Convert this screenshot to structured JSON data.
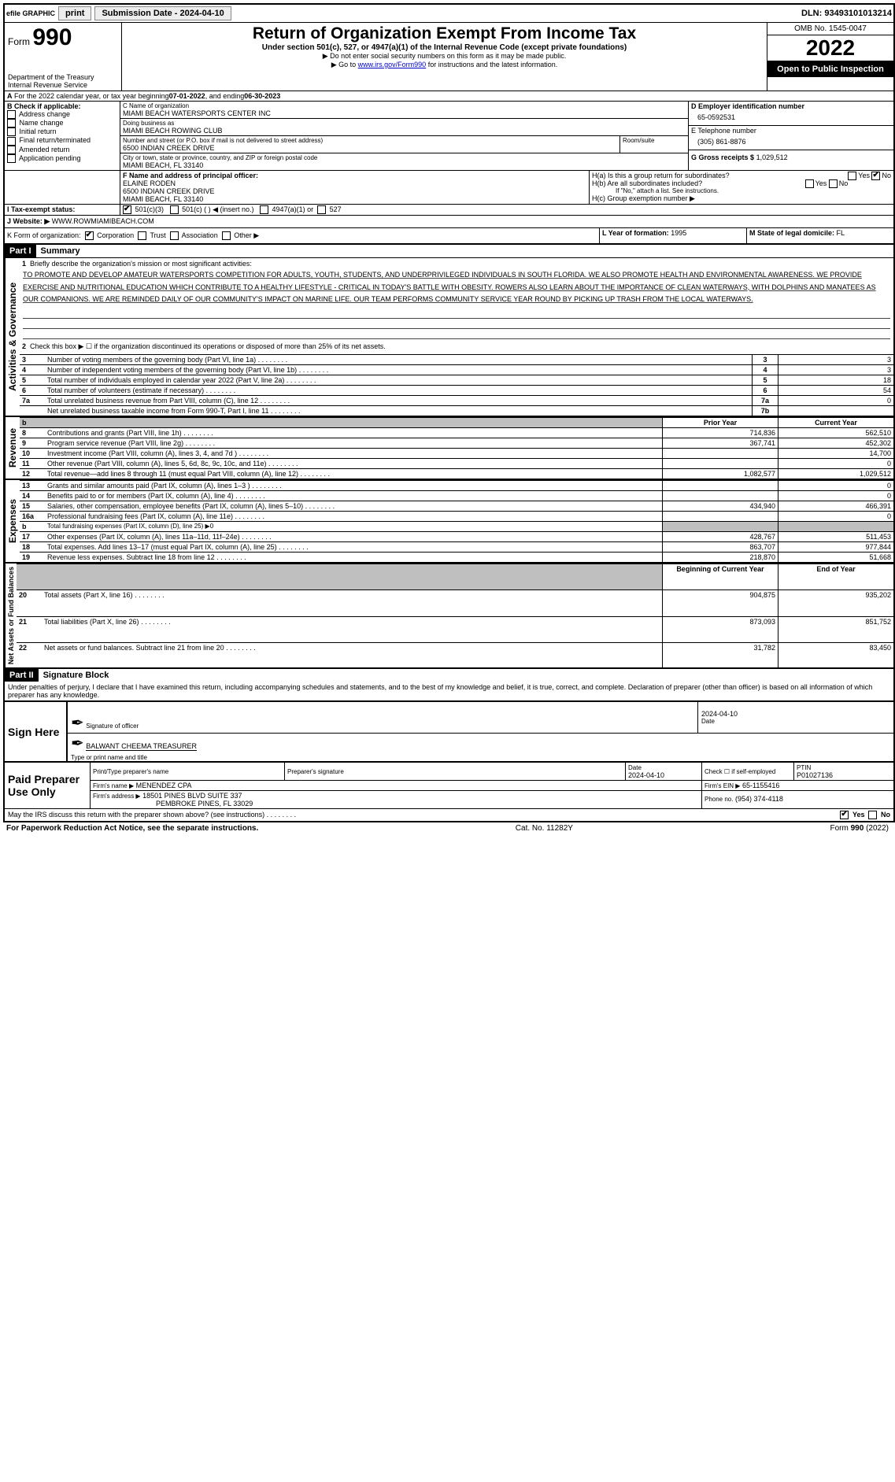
{
  "topbar": {
    "efile": "efile GRAPHIC",
    "print": "print",
    "submission_label": "Submission Date - 2024-04-10",
    "dln": "DLN: 93493101013214"
  },
  "header": {
    "form_label": "Form",
    "form_number": "990",
    "title": "Return of Organization Exempt From Income Tax",
    "subtitle": "Under section 501(c), 527, or 4947(a)(1) of the Internal Revenue Code (except private foundations)",
    "no_ssn": "▶ Do not enter social security numbers on this form as it may be made public.",
    "goto_pre": "▶ Go to ",
    "goto_link": "www.irs.gov/Form990",
    "goto_post": " for instructions and the latest information.",
    "dept": "Department of the Treasury",
    "irs": "Internal Revenue Service",
    "omb": "OMB No. 1545-0047",
    "year": "2022",
    "open": "Open to Public Inspection"
  },
  "periodA": {
    "text_pre": "For the 2022 calendar year, or tax year beginning ",
    "begin": "07-01-2022",
    "mid": " , and ending ",
    "end": "06-30-2023"
  },
  "boxB": {
    "label": "B Check if applicable:",
    "items": [
      "Address change",
      "Name change",
      "Initial return",
      "Final return/terminated",
      "Amended return",
      "Application pending"
    ]
  },
  "boxC": {
    "name_label": "C Name of organization",
    "name": "MIAMI BEACH WATERSPORTS CENTER INC",
    "dba_label": "Doing business as",
    "dba": "MIAMI BEACH ROWING CLUB",
    "street_label": "Number and street (or P.O. box if mail is not delivered to street address)",
    "room_label": "Room/suite",
    "street": "6500 INDIAN CREEK DRIVE",
    "city_label": "City or town, state or province, country, and ZIP or foreign postal code",
    "city": "MIAMI BEACH, FL  33140"
  },
  "boxD": {
    "label": "D Employer identification number",
    "value": "65-0592531"
  },
  "boxE": {
    "label": "E Telephone number",
    "value": "(305) 861-8876"
  },
  "boxG": {
    "label": "G Gross receipts $",
    "value": "1,029,512"
  },
  "boxF": {
    "label": "F  Name and address of principal officer:",
    "name": "ELAINE RODEN",
    "street": "6500 INDIAN CREEK DRIVE",
    "city": "MIAMI BEACH, FL  33140"
  },
  "boxH": {
    "a": "H(a)  Is this a group return for subordinates?",
    "b": "H(b)  Are all subordinates included?",
    "note": "If \"No,\" attach a list. See instructions.",
    "c": "H(c)  Group exemption number ▶"
  },
  "boxI": {
    "label": "I  Tax-exempt status:",
    "o501c3": "501(c)(3)",
    "o501c": "501(c) (   ) ◀ (insert no.)",
    "o4947": "4947(a)(1) or",
    "o527": "527"
  },
  "boxJ": {
    "label": "J  Website: ▶",
    "value": "WWW.ROWMIAMIBEACH.COM"
  },
  "boxK": {
    "label": "K Form of organization:",
    "corp": "Corporation",
    "trust": "Trust",
    "assoc": "Association",
    "other": "Other ▶"
  },
  "boxL": {
    "label": "L Year of formation:",
    "value": "1995"
  },
  "boxM": {
    "label": "M State of legal domicile:",
    "value": "FL"
  },
  "part1": {
    "hdr": "Part I",
    "title": "Summary",
    "q1": "Briefly describe the organization's mission or most significant activities:",
    "mission": "TO PROMOTE AND DEVELOP AMATEUR WATERSPORTS COMPETITION FOR ADULTS, YOUTH, STUDENTS, AND UNDERPRIVILEGED INDIVIDUALS IN SOUTH FLORIDA. WE ALSO PROMOTE HEALTH AND ENVIRONMENTAL AWARENESS. WE PROVIDE EXERCISE AND NUTRITIONAL EDUCATION WHICH CONTRIBUTE TO A HEALTHY LIFESTYLE - CRITICAL IN TODAY'S BATTLE WITH OBESITY. ROWERS ALSO LEARN ABOUT THE IMPORTANCE OF CLEAN WATERWAYS, WITH DOLPHINS AND MANATEES AS OUR COMPANIONS. WE ARE REMINDED DAILY OF OUR COMMUNITY'S IMPACT ON MARINE LIFE. OUR TEAM PERFORMS COMMUNITY SERVICE YEAR ROUND BY PICKING UP TRASH FROM THE LOCAL WATERWAYS.",
    "q2": "Check this box ▶ ☐ if the organization discontinued its operations or disposed of more than 25% of its net assets.",
    "side_ag": "Activities & Governance",
    "side_rev": "Revenue",
    "side_exp": "Expenses",
    "side_net": "Net Assets or Fund Balances",
    "lines_gov": [
      {
        "n": "3",
        "t": "Number of voting members of the governing body (Part VI, line 1a)",
        "box": "3",
        "v": "3"
      },
      {
        "n": "4",
        "t": "Number of independent voting members of the governing body (Part VI, line 1b)",
        "box": "4",
        "v": "3"
      },
      {
        "n": "5",
        "t": "Total number of individuals employed in calendar year 2022 (Part V, line 2a)",
        "box": "5",
        "v": "18"
      },
      {
        "n": "6",
        "t": "Total number of volunteers (estimate if necessary)",
        "box": "6",
        "v": "54"
      },
      {
        "n": "7a",
        "t": "Total unrelated business revenue from Part VIII, column (C), line 12",
        "box": "7a",
        "v": "0"
      },
      {
        "n": "",
        "t": "Net unrelated business taxable income from Form 990-T, Part I, line 11",
        "box": "7b",
        "v": ""
      }
    ],
    "col_prior": "Prior Year",
    "col_current": "Current Year",
    "lines_rev": [
      {
        "n": "8",
        "t": "Contributions and grants (Part VIII, line 1h)",
        "p": "714,836",
        "c": "562,510"
      },
      {
        "n": "9",
        "t": "Program service revenue (Part VIII, line 2g)",
        "p": "367,741",
        "c": "452,302"
      },
      {
        "n": "10",
        "t": "Investment income (Part VIII, column (A), lines 3, 4, and 7d )",
        "p": "",
        "c": "14,700"
      },
      {
        "n": "11",
        "t": "Other revenue (Part VIII, column (A), lines 5, 6d, 8c, 9c, 10c, and 11e)",
        "p": "",
        "c": "0"
      },
      {
        "n": "12",
        "t": "Total revenue—add lines 8 through 11 (must equal Part VIII, column (A), line 12)",
        "p": "1,082,577",
        "c": "1,029,512"
      }
    ],
    "lines_exp": [
      {
        "n": "13",
        "t": "Grants and similar amounts paid (Part IX, column (A), lines 1–3 )",
        "p": "",
        "c": "0"
      },
      {
        "n": "14",
        "t": "Benefits paid to or for members (Part IX, column (A), line 4)",
        "p": "",
        "c": "0"
      },
      {
        "n": "15",
        "t": "Salaries, other compensation, employee benefits (Part IX, column (A), lines 5–10)",
        "p": "434,940",
        "c": "466,391"
      },
      {
        "n": "16a",
        "t": "Professional fundraising fees (Part IX, column (A), line 11e)",
        "p": "",
        "c": "0"
      },
      {
        "n": "b",
        "t": "Total fundraising expenses (Part IX, column (D), line 25) ▶0",
        "p": "SHADE",
        "c": "SHADE"
      },
      {
        "n": "17",
        "t": "Other expenses (Part IX, column (A), lines 11a–11d, 11f–24e)",
        "p": "428,767",
        "c": "511,453"
      },
      {
        "n": "18",
        "t": "Total expenses. Add lines 13–17 (must equal Part IX, column (A), line 25)",
        "p": "863,707",
        "c": "977,844"
      },
      {
        "n": "19",
        "t": "Revenue less expenses. Subtract line 18 from line 12",
        "p": "218,870",
        "c": "51,668"
      }
    ],
    "col_begin": "Beginning of Current Year",
    "col_end": "End of Year",
    "lines_net": [
      {
        "n": "20",
        "t": "Total assets (Part X, line 16)",
        "p": "904,875",
        "c": "935,202"
      },
      {
        "n": "21",
        "t": "Total liabilities (Part X, line 26)",
        "p": "873,093",
        "c": "851,752"
      },
      {
        "n": "22",
        "t": "Net assets or fund balances. Subtract line 21 from line 20",
        "p": "31,782",
        "c": "83,450"
      }
    ]
  },
  "part2": {
    "hdr": "Part II",
    "title": "Signature Block",
    "decl": "Under penalties of perjury, I declare that I have examined this return, including accompanying schedules and statements, and to the best of my knowledge and belief, it is true, correct, and complete. Declaration of preparer (other than officer) is based on all information of which preparer has any knowledge.",
    "sign_here": "Sign Here",
    "sig_officer": "Signature of officer",
    "sig_date": "Date",
    "sig_date_val": "2024-04-10",
    "officer_name": "BALWANT CHEEMA  TREASURER",
    "type_name": "Type or print name and title",
    "paid": "Paid Preparer Use Only",
    "prep_name_label": "Print/Type preparer's name",
    "prep_sig_label": "Preparer's signature",
    "prep_date_label": "Date",
    "prep_date": "2024-04-10",
    "check_self": "Check ☐ if self-employed",
    "ptin_label": "PTIN",
    "ptin": "P01027136",
    "firm_name_label": "Firm's name    ▶",
    "firm_name": "MENENDEZ CPA",
    "firm_ein_label": "Firm's EIN ▶",
    "firm_ein": "65-1155416",
    "firm_addr_label": "Firm's address ▶",
    "firm_addr1": "18501 PINES BLVD SUITE 337",
    "firm_addr2": "PEMBROKE PINES, FL  33029",
    "phone_label": "Phone no.",
    "phone": "(954) 374-4118",
    "discuss": "May the IRS discuss this return with the preparer shown above? (see instructions)",
    "yes": "Yes",
    "no": "No"
  },
  "footer": {
    "pra": "For Paperwork Reduction Act Notice, see the separate instructions.",
    "cat": "Cat. No. 11282Y",
    "form": "Form 990 (2022)"
  }
}
